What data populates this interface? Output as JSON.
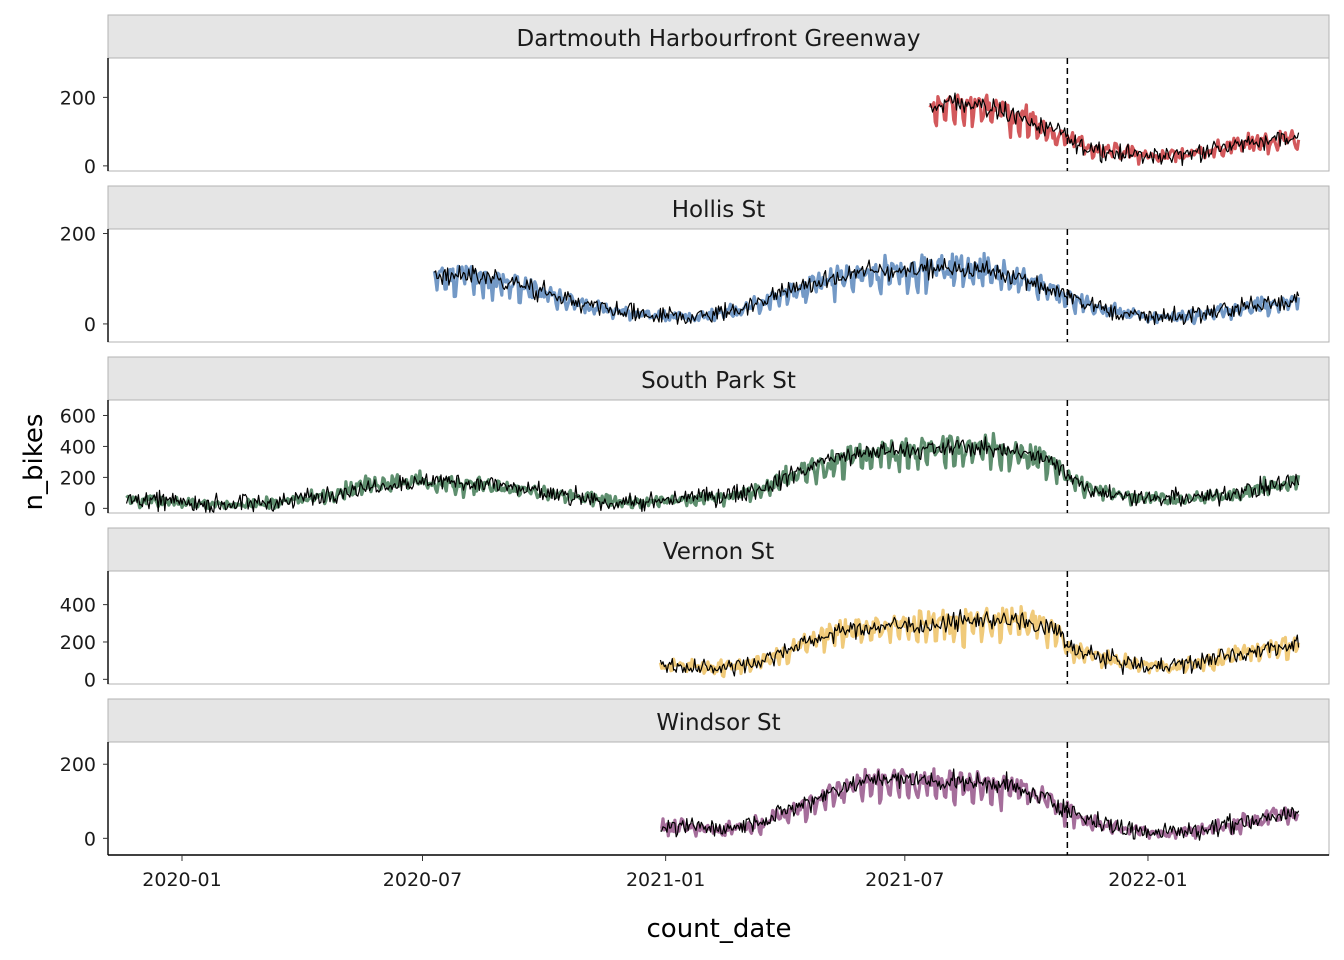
{
  "chart_data": {
    "type": "line",
    "xlabel": "count_date",
    "ylabel": "n_bikes",
    "x_ticks": [
      "2020-01",
      "2020-07",
      "2021-01",
      "2021-07",
      "2022-01"
    ],
    "xlim": [
      "2019-11-06",
      "2022-05-18"
    ],
    "vline_date": "2021-11-01",
    "vline_style": "dashed",
    "layout": "facets stacked vertically, shared x axis, free y scales",
    "observed_line_width": "thick, colored",
    "fitted_line": {
      "color": "#000000",
      "width": "thin",
      "description": "black line overlaid on each panel"
    },
    "panels": [
      {
        "name": "Dartmouth Harbourfront Greenway",
        "color": "#D3595C",
        "y_ticks": [
          0,
          200
        ],
        "ylim": [
          -15,
          315
        ],
        "start": "2021-07-20",
        "end": "2022-04-25",
        "points": [
          [
            "2021-07-20",
            160
          ],
          [
            "2021-08-01",
            185
          ],
          [
            "2021-08-15",
            180
          ],
          [
            "2021-09-01",
            170
          ],
          [
            "2021-09-15",
            160
          ],
          [
            "2021-10-01",
            135
          ],
          [
            "2021-10-15",
            110
          ],
          [
            "2021-11-01",
            80
          ],
          [
            "2021-11-15",
            55
          ],
          [
            "2021-12-01",
            45
          ],
          [
            "2021-12-15",
            40
          ],
          [
            "2022-01-01",
            28
          ],
          [
            "2022-01-15",
            30
          ],
          [
            "2022-02-01",
            38
          ],
          [
            "2022-02-15",
            45
          ],
          [
            "2022-03-01",
            55
          ],
          [
            "2022-03-15",
            65
          ],
          [
            "2022-04-01",
            75
          ],
          [
            "2022-04-25",
            85
          ]
        ]
      },
      {
        "name": "Hollis St",
        "color": "#7399C6",
        "y_ticks": [
          0,
          200
        ],
        "ylim": [
          -40,
          210
        ],
        "start": "2020-07-10",
        "end": "2022-04-25",
        "points": [
          [
            "2020-07-10",
            105
          ],
          [
            "2020-08-01",
            110
          ],
          [
            "2020-09-01",
            95
          ],
          [
            "2020-10-01",
            70
          ],
          [
            "2020-11-01",
            40
          ],
          [
            "2020-12-01",
            25
          ],
          [
            "2021-01-01",
            15
          ],
          [
            "2021-02-01",
            18
          ],
          [
            "2021-03-01",
            35
          ],
          [
            "2021-04-01",
            70
          ],
          [
            "2021-05-01",
            95
          ],
          [
            "2021-06-01",
            115
          ],
          [
            "2021-07-01",
            120
          ],
          [
            "2021-08-01",
            125
          ],
          [
            "2021-09-01",
            120
          ],
          [
            "2021-10-01",
            100
          ],
          [
            "2021-11-01",
            60
          ],
          [
            "2021-12-01",
            30
          ],
          [
            "2022-01-01",
            15
          ],
          [
            "2022-02-01",
            18
          ],
          [
            "2022-03-01",
            30
          ],
          [
            "2022-04-01",
            45
          ],
          [
            "2022-04-25",
            55
          ]
        ]
      },
      {
        "name": "South Park St",
        "color": "#5F8F6F",
        "y_ticks": [
          0,
          200,
          400,
          600
        ],
        "ylim": [
          -30,
          700
        ],
        "start": "2019-11-20",
        "end": "2022-04-25",
        "points": [
          [
            "2019-11-20",
            60
          ],
          [
            "2019-12-15",
            45
          ],
          [
            "2020-01-15",
            30
          ],
          [
            "2020-02-15",
            25
          ],
          [
            "2020-03-15",
            40
          ],
          [
            "2020-04-15",
            80
          ],
          [
            "2020-05-15",
            140
          ],
          [
            "2020-06-15",
            175
          ],
          [
            "2020-07-15",
            170
          ],
          [
            "2020-08-15",
            160
          ],
          [
            "2020-09-15",
            120
          ],
          [
            "2020-10-15",
            80
          ],
          [
            "2020-11-15",
            50
          ],
          [
            "2020-12-15",
            35
          ],
          [
            "2021-01-15",
            60
          ],
          [
            "2021-02-15",
            80
          ],
          [
            "2021-03-15",
            130
          ],
          [
            "2021-04-15",
            250
          ],
          [
            "2021-05-15",
            330
          ],
          [
            "2021-06-15",
            370
          ],
          [
            "2021-07-15",
            380
          ],
          [
            "2021-08-15",
            400
          ],
          [
            "2021-09-15",
            380
          ],
          [
            "2021-10-15",
            320
          ],
          [
            "2021-11-15",
            140
          ],
          [
            "2021-12-15",
            80
          ],
          [
            "2022-01-15",
            60
          ],
          [
            "2022-02-15",
            70
          ],
          [
            "2022-03-15",
            110
          ],
          [
            "2022-04-25",
            180
          ]
        ]
      },
      {
        "name": "Vernon St",
        "color": "#F0CA7A",
        "y_ticks": [
          0,
          200,
          400
        ],
        "ylim": [
          -25,
          580
        ],
        "start": "2020-12-28",
        "end": "2022-04-25",
        "points": [
          [
            "2020-12-28",
            75
          ],
          [
            "2021-01-15",
            70
          ],
          [
            "2021-02-15",
            65
          ],
          [
            "2021-03-15",
            100
          ],
          [
            "2021-04-01",
            150
          ],
          [
            "2021-05-01",
            240
          ],
          [
            "2021-06-01",
            280
          ],
          [
            "2021-07-01",
            290
          ],
          [
            "2021-08-01",
            300
          ],
          [
            "2021-09-01",
            320
          ],
          [
            "2021-10-01",
            310
          ],
          [
            "2021-10-25",
            260
          ],
          [
            "2021-11-01",
            170
          ],
          [
            "2021-12-01",
            110
          ],
          [
            "2022-01-01",
            70
          ],
          [
            "2022-02-01",
            80
          ],
          [
            "2022-03-01",
            120
          ],
          [
            "2022-04-01",
            170
          ],
          [
            "2022-04-25",
            190
          ]
        ]
      },
      {
        "name": "Windsor St",
        "color": "#A56E9B",
        "y_ticks": [
          0,
          200
        ],
        "ylim": [
          -45,
          260
        ],
        "start": "2020-12-28",
        "end": "2022-04-25",
        "points": [
          [
            "2020-12-28",
            30
          ],
          [
            "2021-01-15",
            30
          ],
          [
            "2021-02-15",
            25
          ],
          [
            "2021-03-15",
            45
          ],
          [
            "2021-04-15",
            90
          ],
          [
            "2021-05-15",
            140
          ],
          [
            "2021-06-15",
            160
          ],
          [
            "2021-07-15",
            155
          ],
          [
            "2021-08-15",
            150
          ],
          [
            "2021-09-15",
            145
          ],
          [
            "2021-10-15",
            110
          ],
          [
            "2021-11-15",
            50
          ],
          [
            "2021-12-15",
            25
          ],
          [
            "2022-01-15",
            15
          ],
          [
            "2022-02-15",
            25
          ],
          [
            "2022-03-15",
            45
          ],
          [
            "2022-04-25",
            70
          ]
        ]
      }
    ]
  }
}
